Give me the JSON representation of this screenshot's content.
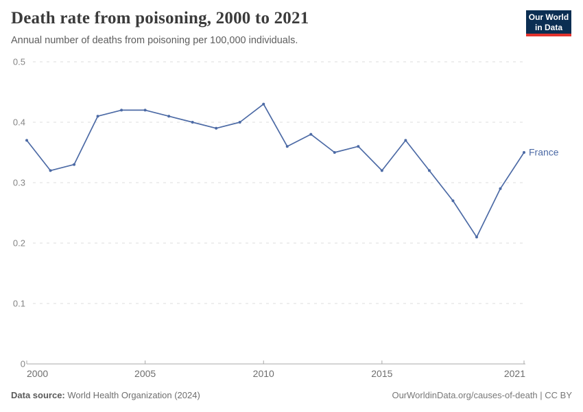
{
  "header": {
    "title": "Death rate from poisoning, 2000 to 2021",
    "subtitle": "Annual number of deaths from poisoning per 100,000 individuals.",
    "logo": {
      "line1": "Our World",
      "line2": "in Data"
    }
  },
  "chart_data": {
    "type": "line",
    "title": "Death rate from poisoning, 2000 to 2021",
    "xlabel": "",
    "ylabel": "",
    "xlim": [
      2000,
      2021
    ],
    "ylim": [
      0,
      0.5
    ],
    "x_ticks": [
      2000,
      2005,
      2010,
      2015,
      2021
    ],
    "y_ticks": [
      0,
      0.1,
      0.2,
      0.3,
      0.4,
      0.5
    ],
    "y_tick_labels": [
      "0",
      "0.1",
      "0.2",
      "0.3",
      "0.4",
      "0.5"
    ],
    "grid": "dashed-horizontal",
    "legend_position": "end-of-line-label",
    "series": [
      {
        "name": "France",
        "color": "#4c6aa5",
        "x": [
          2000,
          2001,
          2002,
          2003,
          2004,
          2005,
          2006,
          2007,
          2008,
          2009,
          2010,
          2011,
          2012,
          2013,
          2014,
          2015,
          2016,
          2017,
          2018,
          2019,
          2020,
          2021
        ],
        "values": [
          0.37,
          0.32,
          0.33,
          0.41,
          0.42,
          0.42,
          0.41,
          0.4,
          0.39,
          0.4,
          0.43,
          0.36,
          0.38,
          0.35,
          0.36,
          0.32,
          0.37,
          0.32,
          0.27,
          0.21,
          0.29,
          0.35
        ]
      }
    ]
  },
  "footer": {
    "source_label": "Data source:",
    "source_value": " World Health Organization (2024)",
    "credit": "OurWorldinData.org/causes-of-death | CC BY"
  },
  "colors": {
    "series_blue": "#4c6aa5",
    "logo_navy": "#0b2e52",
    "logo_red": "#e2332d",
    "gridline": "#dcdcdc",
    "axis": "#a8a8a8",
    "axis_label": "#6e6e6e",
    "y_label": "#858585"
  }
}
